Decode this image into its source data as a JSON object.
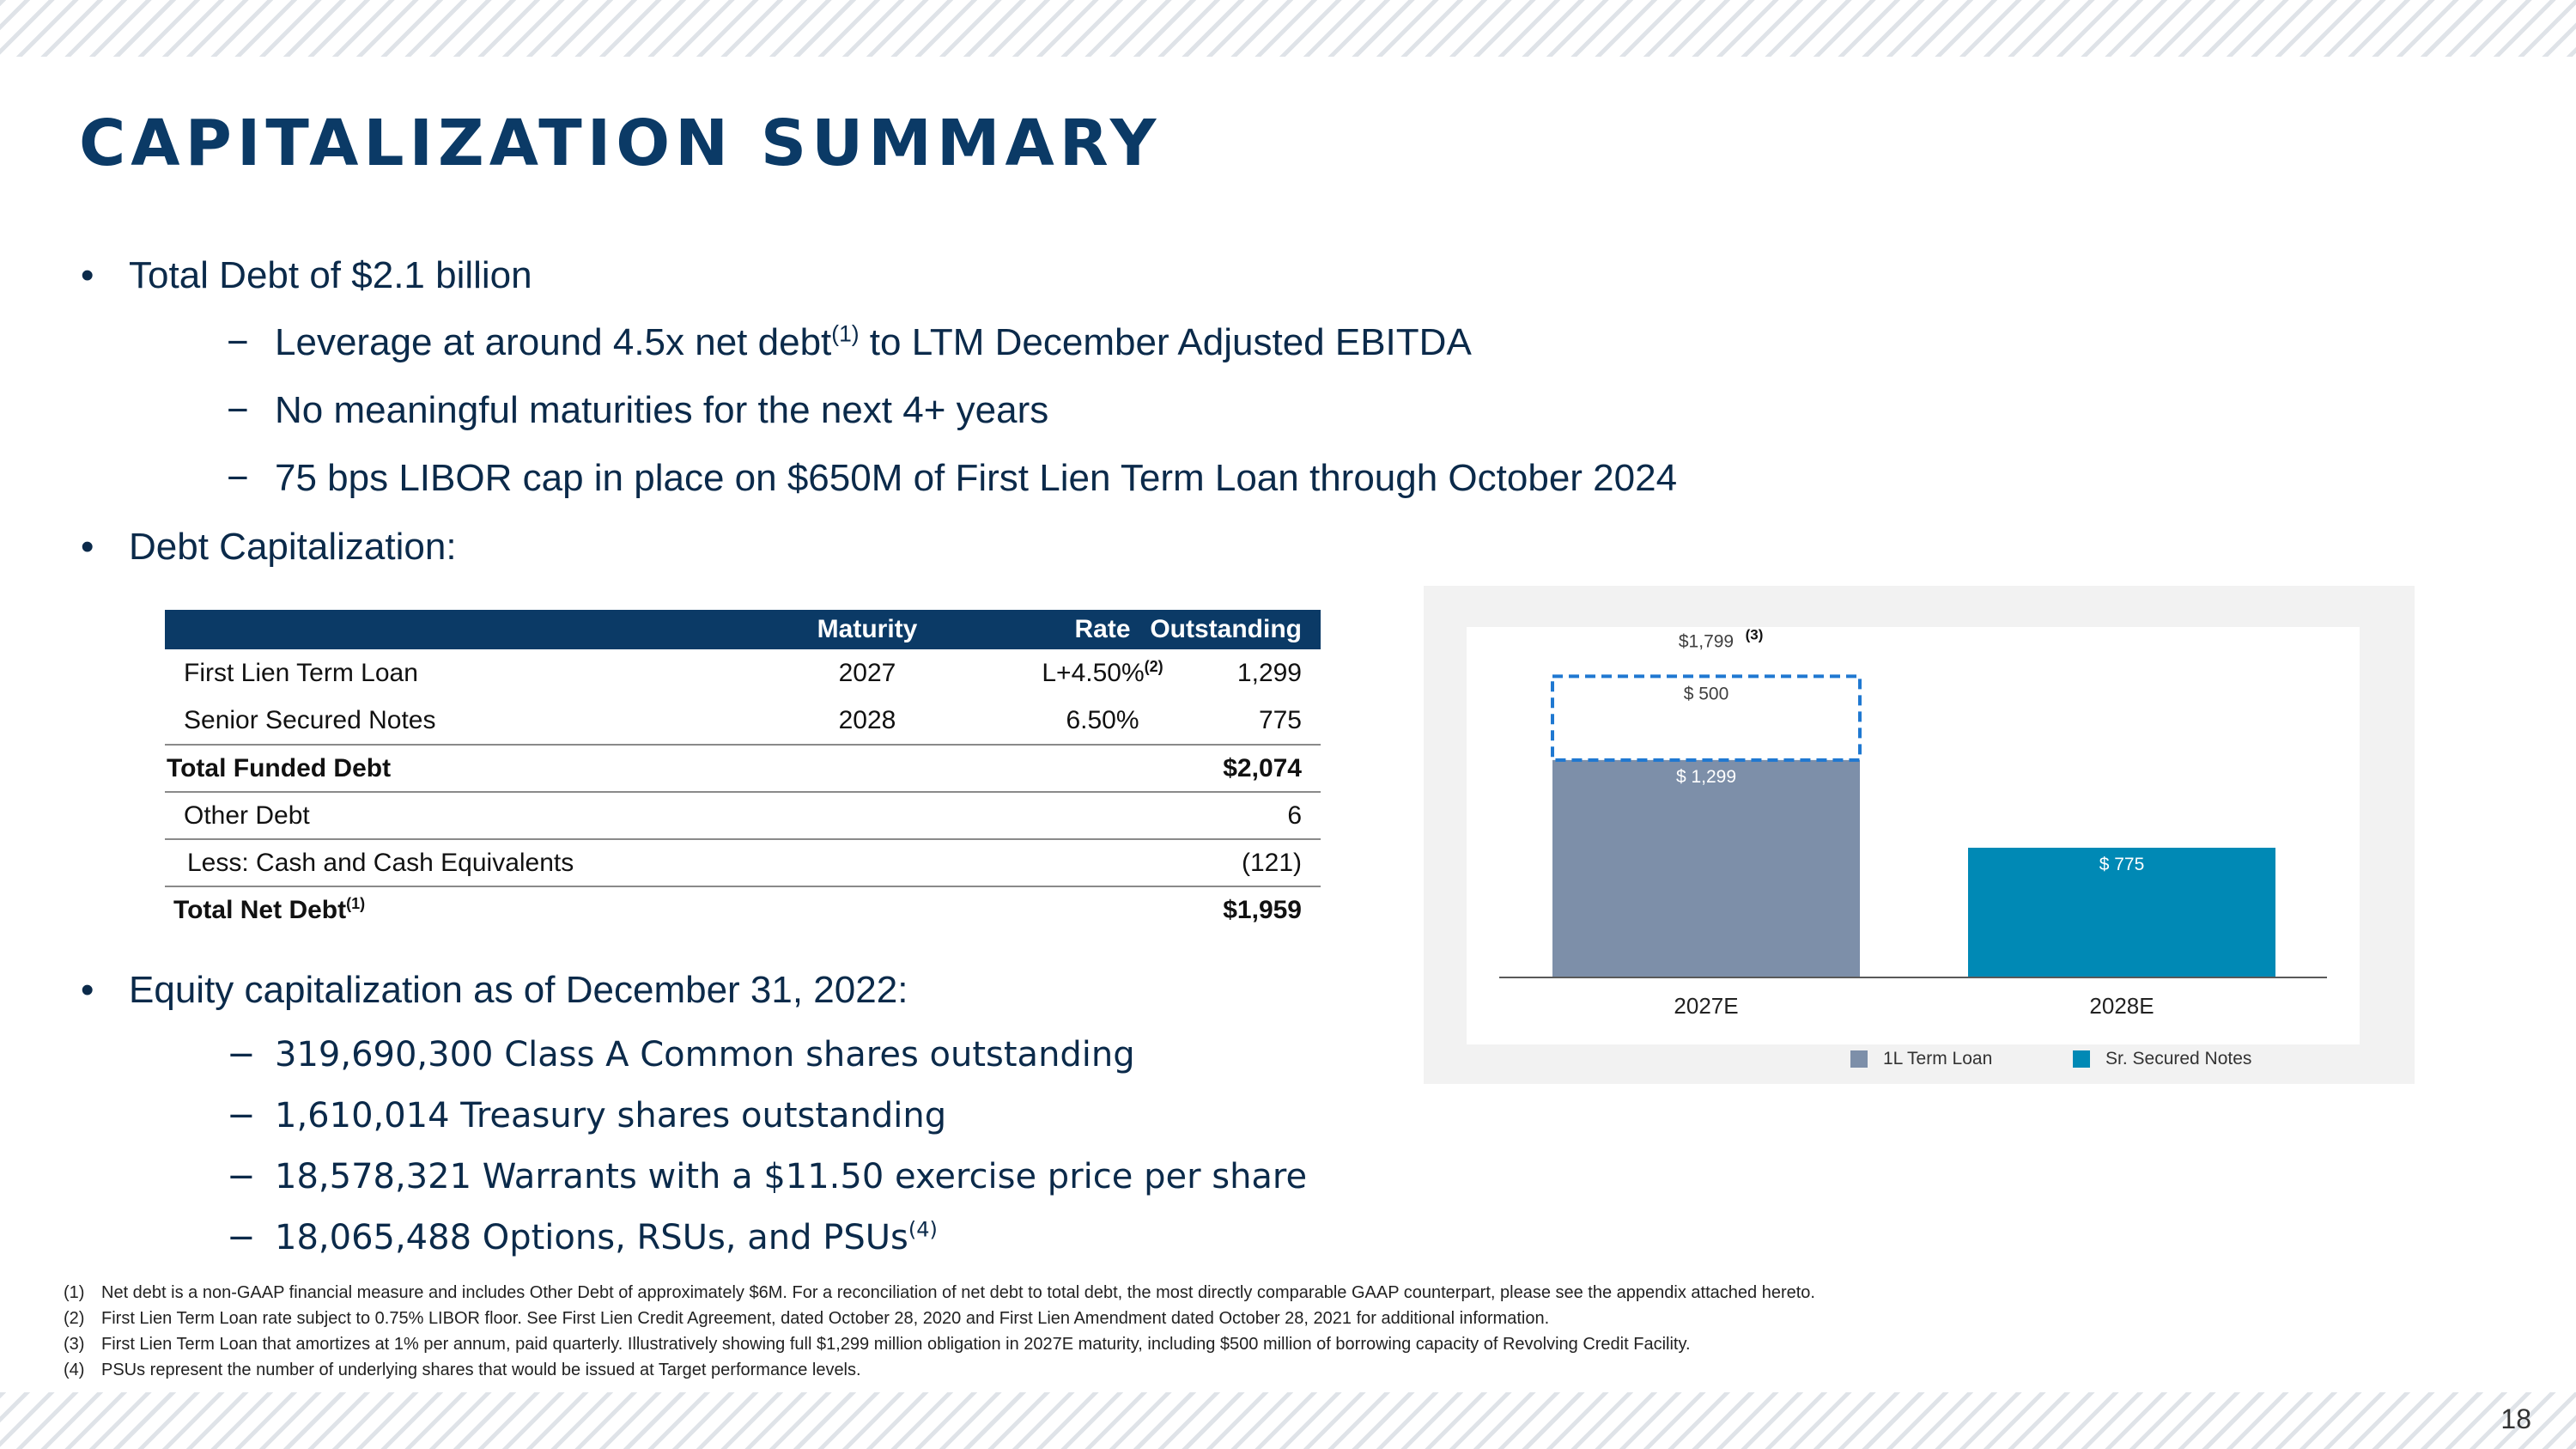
{
  "title": "CAPITALIZATION SUMMARY",
  "bullets": {
    "total_debt": "Total Debt of $2.1 billion",
    "leverage_pre": "Leverage at around 4.5x net debt",
    "leverage_sup": "(1)",
    "leverage_post": " to LTM December Adjusted EBITDA",
    "maturities": "No meaningful maturities for the next 4+ years",
    "libor": "75 bps LIBOR cap in place on $650M of First Lien Term Loan through October 2024",
    "debt_cap": "Debt Capitalization:",
    "equity_cap": "Equity capitalization as of December 31, 2022:",
    "class_a": "319,690,300 Class A Common shares outstanding",
    "treasury": "1,610,014 Treasury shares outstanding",
    "warrants": "18,578,321 Warrants with a $11.50 exercise price per share",
    "options": "18,065,488 Options, RSUs, and PSUs",
    "options_sup": "(4)"
  },
  "debt_table": {
    "headers": {
      "maturity": "Maturity",
      "rate": "Rate",
      "outstanding": "Outstanding"
    },
    "rows": [
      {
        "name": "First Lien Term Loan",
        "maturity": "2027",
        "rate": "L+4.50%",
        "rate_sup": "(2)",
        "outstanding": "1,299"
      },
      {
        "name": "Senior Secured Notes",
        "maturity": "2028",
        "rate": "6.50%",
        "outstanding": "775"
      },
      {
        "name": "Total Funded Debt",
        "outstanding": "$2,074"
      },
      {
        "name": "Other Debt",
        "outstanding": "6"
      },
      {
        "name": "Less: Cash and Cash Equivalents",
        "outstanding": "(121)"
      },
      {
        "name": "Total Net Debt",
        "name_sup": "(1)",
        "outstanding": "$1,959"
      }
    ]
  },
  "chart_data": {
    "type": "bar",
    "stacked": true,
    "categories": [
      "2027E",
      "2028E"
    ],
    "series": [
      {
        "name": "1L Term Loan",
        "values": [
          1299,
          0
        ],
        "color": "#7d8fa9"
      },
      {
        "name": "Sr. Secured Notes",
        "values": [
          0,
          775
        ],
        "color": "#0089b5"
      }
    ],
    "revolver_capacity": {
      "category": "2027E",
      "value": 500,
      "label": "$ 500",
      "style": "dashed",
      "color": "#1f78d1"
    },
    "data_labels": {
      "term_loan": "$ 1,299",
      "secured_notes": "$ 775",
      "total_2027": "$1,799",
      "total_2027_note": "(3)"
    },
    "ylim": [
      0,
      1950
    ],
    "legend_position": "bottom",
    "grid": false
  },
  "footnotes": [
    {
      "num": "(1)",
      "text": "Net debt is a non-GAAP financial measure and includes Other Debt of approximately $6M. For a reconciliation of net debt to total debt, the most directly comparable GAAP counterpart, please see the appendix attached hereto."
    },
    {
      "num": "(2)",
      "text": "First Lien Term Loan rate subject to 0.75% LIBOR floor. See First Lien Credit Agreement, dated October 28, 2020 and First Lien Amendment dated October 28, 2021 for additional information."
    },
    {
      "num": "(3)",
      "text": "First Lien Term Loan that amortizes at 1% per annum, paid quarterly. Illustratively showing full $1,299 million obligation in 2027E maturity, including $500 million of borrowing capacity of Revolving Credit Facility."
    },
    {
      "num": "(4)",
      "text": "PSUs represent the number of underlying shares that would be issued at Target performance levels."
    }
  ],
  "page_number": "18"
}
